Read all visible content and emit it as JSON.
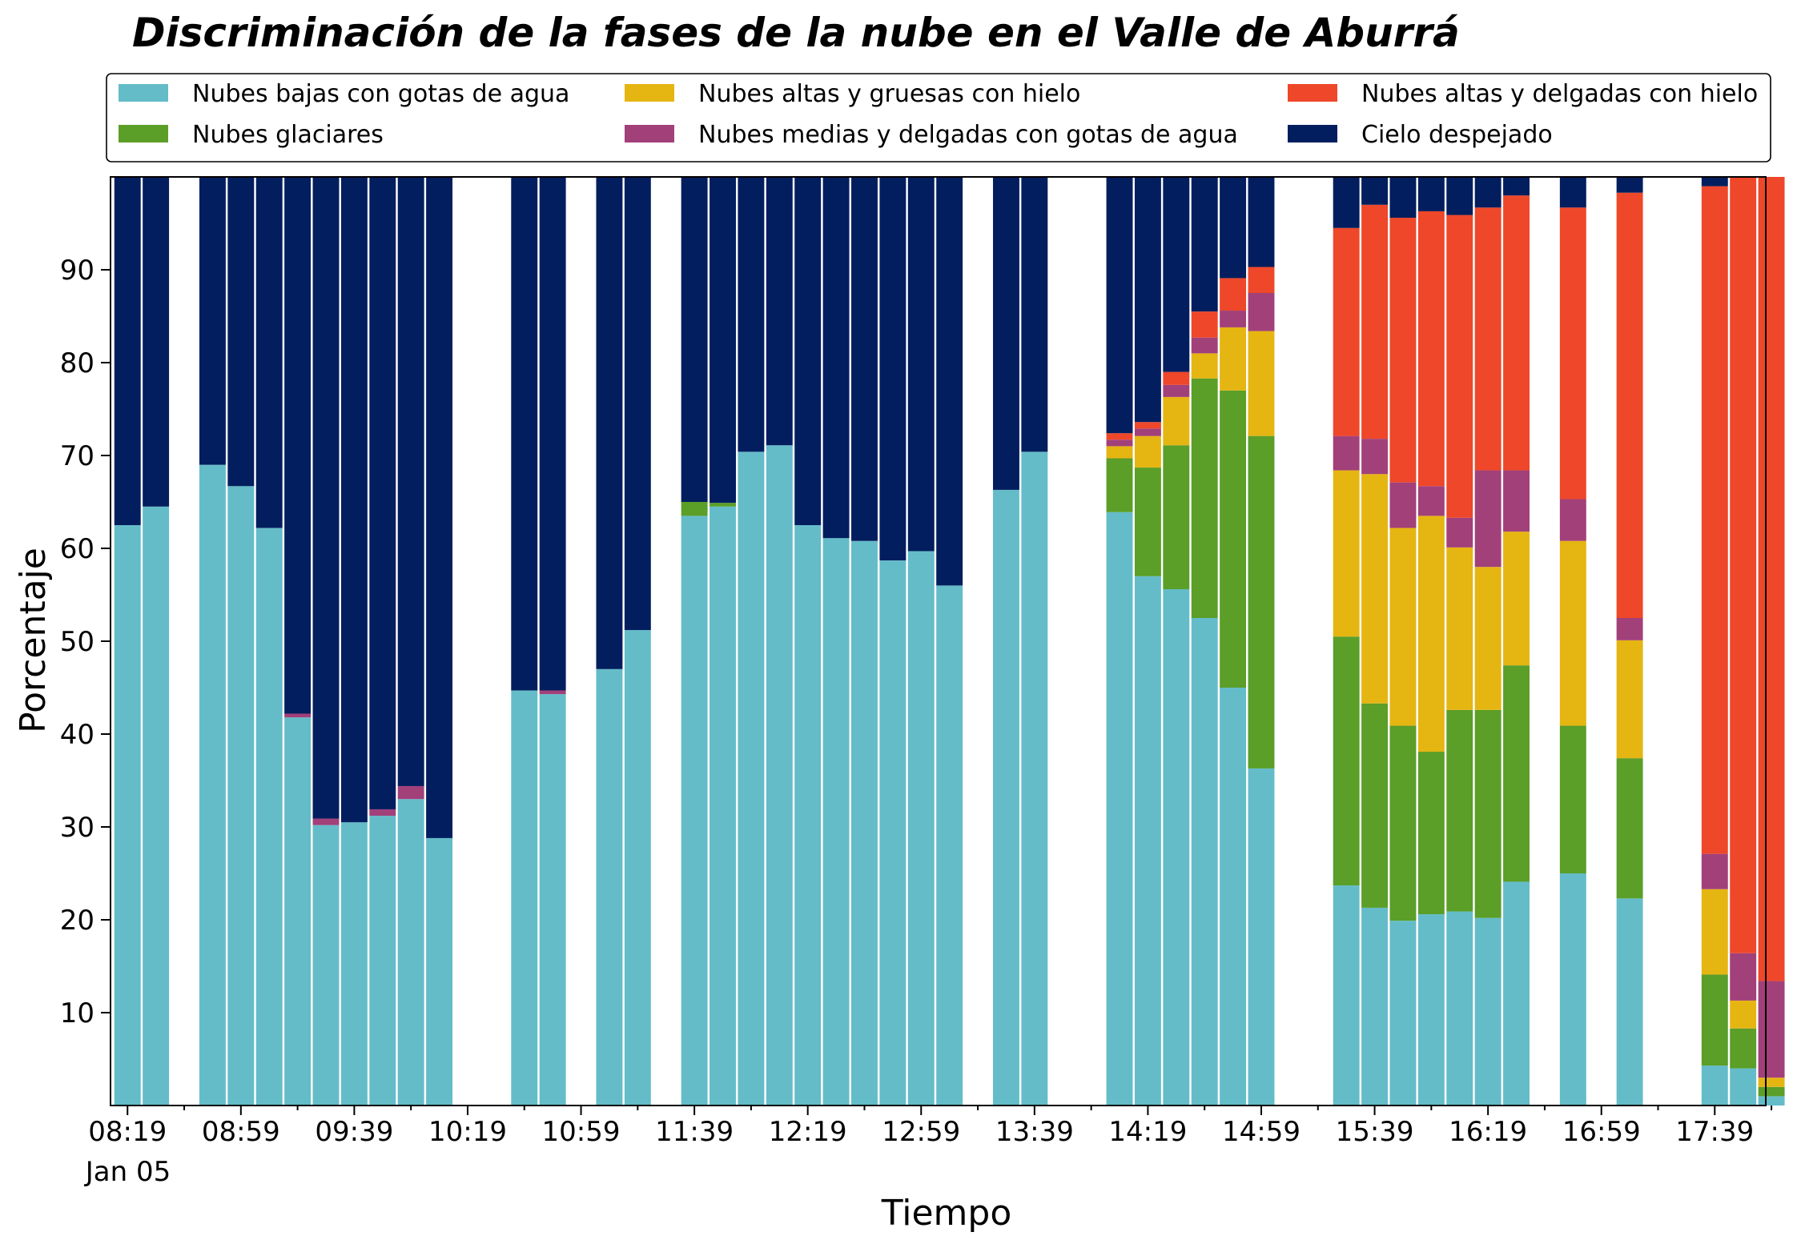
{
  "chart_data": {
    "type": "bar",
    "stacked": true,
    "title": "Discriminación de la fases de la nube en el Valle de Aburrá",
    "xlabel": "Tiempo",
    "ylabel": "Porcentaje",
    "ylim": [
      0,
      100
    ],
    "yticks": [
      10,
      20,
      30,
      40,
      50,
      60,
      70,
      80,
      90
    ],
    "xlim_minutes_from_0819": [
      -6,
      578
    ],
    "x_major_ticks": [
      "08:19",
      "08:59",
      "09:39",
      "10:19",
      "10:59",
      "11:39",
      "12:19",
      "12:59",
      "13:39",
      "14:19",
      "14:59",
      "15:39",
      "16:19",
      "16:59",
      "17:39"
    ],
    "x_date_label": "Jan 05",
    "grid": false,
    "legend_placement": "top",
    "series": [
      {
        "name": "Nubes bajas con gotas de agua",
        "color": "#64BCC9"
      },
      {
        "name": "Nubes glaciares",
        "color": "#5B9E28"
      },
      {
        "name": "Nubes altas y gruesas con hielo",
        "color": "#E5B512"
      },
      {
        "name": "Nubes medias y delgadas con gotas de agua",
        "color": "#A2407A"
      },
      {
        "name": "Nubes altas y delgadas con hielo",
        "color": "#EE472A"
      },
      {
        "name": "Cielo despejado",
        "color": "#031E5E"
      }
    ],
    "bars": [
      {
        "t": 0,
        "values": [
          62.5,
          0,
          0,
          0,
          0,
          37.5
        ]
      },
      {
        "t": 10,
        "values": [
          64.5,
          0,
          0,
          0,
          0,
          35.5
        ]
      },
      {
        "t": 30,
        "values": [
          69,
          0,
          0,
          0,
          0,
          31
        ]
      },
      {
        "t": 40,
        "values": [
          66.7,
          0,
          0,
          0,
          0,
          33.3
        ]
      },
      {
        "t": 50,
        "values": [
          62.2,
          0,
          0,
          0,
          0,
          37.8
        ]
      },
      {
        "t": 60,
        "values": [
          41.8,
          0,
          0,
          0.4,
          0,
          57.8
        ]
      },
      {
        "t": 70,
        "values": [
          30.2,
          0,
          0,
          0.7,
          0,
          69.1
        ]
      },
      {
        "t": 80,
        "values": [
          30.5,
          0,
          0,
          0,
          0,
          69.5
        ]
      },
      {
        "t": 90,
        "values": [
          31.2,
          0,
          0,
          0.7,
          0,
          68.1
        ]
      },
      {
        "t": 100,
        "values": [
          33,
          0,
          0,
          1.4,
          0,
          65.6
        ]
      },
      {
        "t": 110,
        "values": [
          28.8,
          0,
          0,
          0,
          0,
          71.2
        ]
      },
      {
        "t": 140,
        "values": [
          44.7,
          0,
          0,
          0,
          0,
          55.3
        ]
      },
      {
        "t": 150,
        "values": [
          44.3,
          0,
          0,
          0.4,
          0,
          55.3
        ]
      },
      {
        "t": 170,
        "values": [
          47,
          0,
          0,
          0,
          0,
          53
        ]
      },
      {
        "t": 180,
        "values": [
          51.2,
          0,
          0,
          0,
          0,
          48.8
        ]
      },
      {
        "t": 200,
        "values": [
          63.5,
          1.5,
          0,
          0,
          0,
          35
        ]
      },
      {
        "t": 210,
        "values": [
          64.5,
          0.4,
          0,
          0,
          0,
          35.1
        ]
      },
      {
        "t": 220,
        "values": [
          70.4,
          0,
          0,
          0,
          0,
          29.6
        ]
      },
      {
        "t": 230,
        "values": [
          71.1,
          0,
          0,
          0,
          0,
          28.9
        ]
      },
      {
        "t": 240,
        "values": [
          62.5,
          0,
          0,
          0,
          0,
          37.5
        ]
      },
      {
        "t": 250,
        "values": [
          61.1,
          0,
          0,
          0,
          0,
          38.9
        ]
      },
      {
        "t": 260,
        "values": [
          60.8,
          0,
          0,
          0,
          0,
          39.2
        ]
      },
      {
        "t": 270,
        "values": [
          58.7,
          0,
          0,
          0,
          0,
          41.3
        ]
      },
      {
        "t": 280,
        "values": [
          59.7,
          0,
          0,
          0,
          0,
          40.3
        ]
      },
      {
        "t": 290,
        "values": [
          56,
          0,
          0,
          0,
          0,
          44
        ]
      },
      {
        "t": 310,
        "values": [
          66.3,
          0,
          0,
          0,
          0,
          33.7
        ]
      },
      {
        "t": 320,
        "values": [
          70.4,
          0,
          0,
          0,
          0,
          29.6
        ]
      },
      {
        "t": 350,
        "values": [
          63.9,
          5.8,
          1.3,
          0.7,
          0.7,
          27.6
        ]
      },
      {
        "t": 360,
        "values": [
          57,
          11.7,
          3.4,
          0.8,
          0.7,
          26.4
        ]
      },
      {
        "t": 370,
        "values": [
          55.6,
          15.5,
          5.2,
          1.3,
          1.4,
          21
        ]
      },
      {
        "t": 380,
        "values": [
          52.5,
          25.8,
          2.7,
          1.7,
          2.8,
          14.5
        ]
      },
      {
        "t": 390,
        "values": [
          45,
          32,
          6.8,
          1.8,
          3.5,
          10.9
        ]
      },
      {
        "t": 400,
        "values": [
          36.3,
          35.8,
          11.3,
          4.1,
          2.8,
          9.7
        ]
      },
      {
        "t": 430,
        "values": [
          23.7,
          26.8,
          17.9,
          3.7,
          22.4,
          5.5
        ]
      },
      {
        "t": 440,
        "values": [
          21.3,
          22,
          24.7,
          3.8,
          25.2,
          3
        ]
      },
      {
        "t": 450,
        "values": [
          19.9,
          21,
          21.3,
          4.9,
          28.5,
          4.4
        ]
      },
      {
        "t": 460,
        "values": [
          20.6,
          17.5,
          25.4,
          3.2,
          29.6,
          3.7
        ]
      },
      {
        "t": 470,
        "values": [
          20.9,
          21.7,
          17.5,
          3.2,
          32.6,
          4.1
        ]
      },
      {
        "t": 480,
        "values": [
          20.2,
          22.4,
          15.4,
          10.4,
          28.3,
          3.3
        ]
      },
      {
        "t": 490,
        "values": [
          24.1,
          23.3,
          14.4,
          6.6,
          29.6,
          2
        ]
      },
      {
        "t": 510,
        "values": [
          25,
          15.9,
          19.9,
          4.5,
          31.4,
          3.3
        ]
      },
      {
        "t": 530,
        "values": [
          22.3,
          15.1,
          12.7,
          2.4,
          45.8,
          1.7
        ]
      },
      {
        "t": 560,
        "values": [
          4.3,
          9.8,
          9.2,
          3.8,
          71.9,
          1
        ]
      },
      {
        "t": 570,
        "values": [
          4,
          4.3,
          3,
          5.1,
          83.6,
          0
        ]
      },
      {
        "t": 580,
        "values": [
          1,
          1,
          1,
          10.4,
          86.6,
          0
        ]
      }
    ]
  }
}
